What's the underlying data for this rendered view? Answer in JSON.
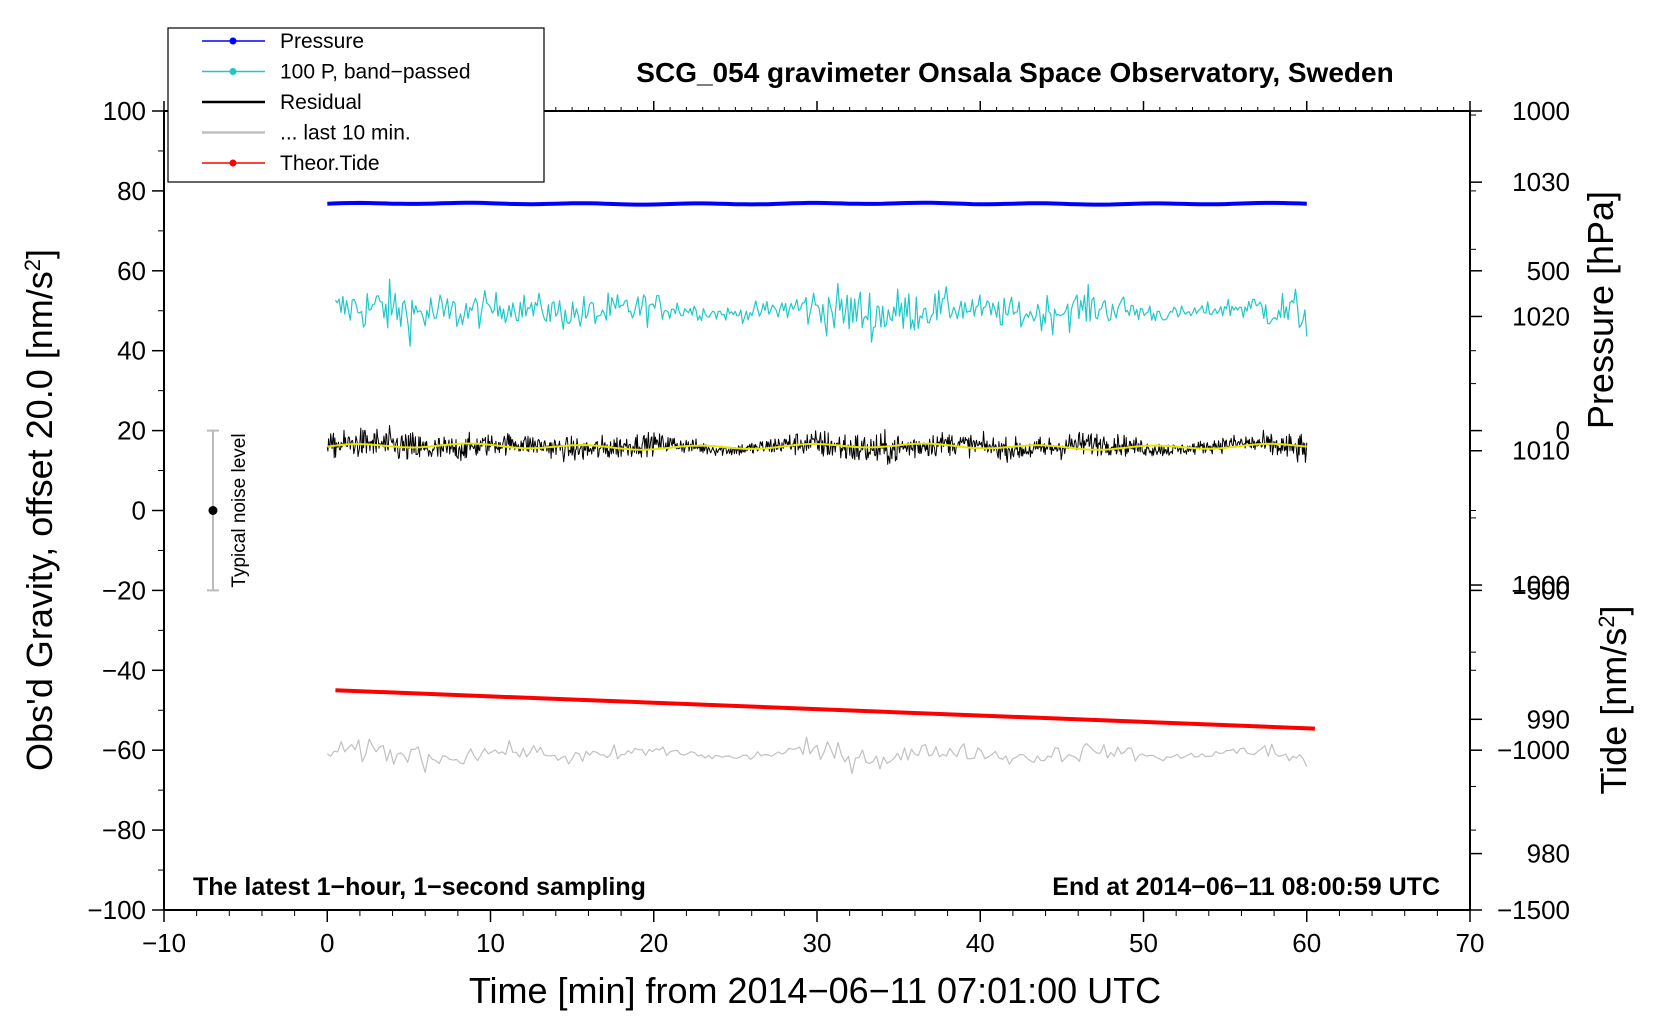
{
  "chart_data": {
    "type": "line",
    "title": "SCG_054 gravimeter Onsala Space Observatory, Sweden",
    "xlabel": "Time [min] from 2014−06−11 07:01:00 UTC",
    "ylabel_main": "Obs'd Gravity, offset 20.0 [nm/s",
    "ylabel_main_sup": "2",
    "ylabel_main_end": "]",
    "ylabel_pressure": "Pressure [hPa]",
    "ylabel_tide": "Tide [nm/s",
    "ylabel_tide_sup": "2",
    "ylabel_tide_end": "]",
    "xlim": [
      -10,
      70
    ],
    "ylim": [
      -100,
      100
    ],
    "xticks": [
      -10,
      0,
      10,
      20,
      30,
      40,
      50,
      60,
      70
    ],
    "xtick_labels": [
      "−10",
      "0",
      "10",
      "20",
      "30",
      "40",
      "50",
      "60",
      "70"
    ],
    "yticks": [
      -100,
      -80,
      -60,
      -40,
      -20,
      0,
      20,
      40,
      60,
      80,
      100
    ],
    "ytick_labels": [
      "−100",
      "−80",
      "−60",
      "−40",
      "−20",
      "0",
      "20",
      "40",
      "60",
      "80",
      "100"
    ],
    "pressure_axis": {
      "ticks": [
        980,
        990,
        1000,
        1010,
        1020,
        1030
      ],
      "tick_labels": [
        "980",
        "990",
        "1000",
        "1010",
        "1020",
        "1030"
      ],
      "range": [
        975.8,
        1035.3
      ]
    },
    "tide_axis": {
      "ticks": [
        -1500,
        -1000,
        -500,
        0,
        500,
        1000
      ],
      "tick_labels": [
        "−1500",
        "−1000",
        "−500",
        "0",
        "500",
        "1000"
      ],
      "range": [
        -1500,
        1000
      ]
    },
    "legend": {
      "position": "top-left",
      "entries": [
        {
          "label": "Pressure",
          "color": "#0000ff",
          "marker": true
        },
        {
          "label": "100 P, band−passed",
          "color": "#20c8c8",
          "marker": true
        },
        {
          "label": "Residual",
          "color": "#000000",
          "marker": false
        },
        {
          "label": "... last 10 min.",
          "color": "#c0c0c0",
          "marker": false
        },
        {
          "label": "Theor.Tide",
          "color": "#ff0000",
          "marker": true
        }
      ]
    },
    "series": [
      {
        "name": "Pressure",
        "color": "#0000ff",
        "x_range": [
          0,
          60
        ],
        "level_y": 76.8,
        "kind": "smooth"
      },
      {
        "name": "100 P, band−passed",
        "color": "#20c8c8",
        "x_range": [
          0.5,
          60
        ],
        "level_y": 50,
        "kind": "noise",
        "amplitude_min": 2,
        "amplitude_max": 10
      },
      {
        "name": "Residual",
        "color": "#000000",
        "x_range": [
          0,
          60
        ],
        "level_y": 16,
        "kind": "noise",
        "amplitude_min": 2,
        "amplitude_max": 6
      },
      {
        "name": "Residual smoothed",
        "color": "#e6e600",
        "x_range": [
          0,
          60
        ],
        "level_y": 16,
        "kind": "smooth"
      },
      {
        "name": "... last 10 min.",
        "color": "#c0c0c0",
        "x_range": [
          0,
          60
        ],
        "level_y": -61,
        "kind": "noise",
        "amplitude_min": 1,
        "amplitude_max": 5
      },
      {
        "name": "Theor.Tide",
        "color": "#ff0000",
        "x": [
          0.5,
          60.5
        ],
        "y": [
          -45,
          -54.6
        ],
        "kind": "linear"
      }
    ],
    "noise_bar": {
      "label": "Typical noise level",
      "x": -7,
      "center": 0,
      "low": -20,
      "high": 20
    },
    "annotation_left": "The latest 1−hour, 1−second sampling",
    "annotation_right": "End at 2014−06−11 08:00:59 UTC"
  }
}
